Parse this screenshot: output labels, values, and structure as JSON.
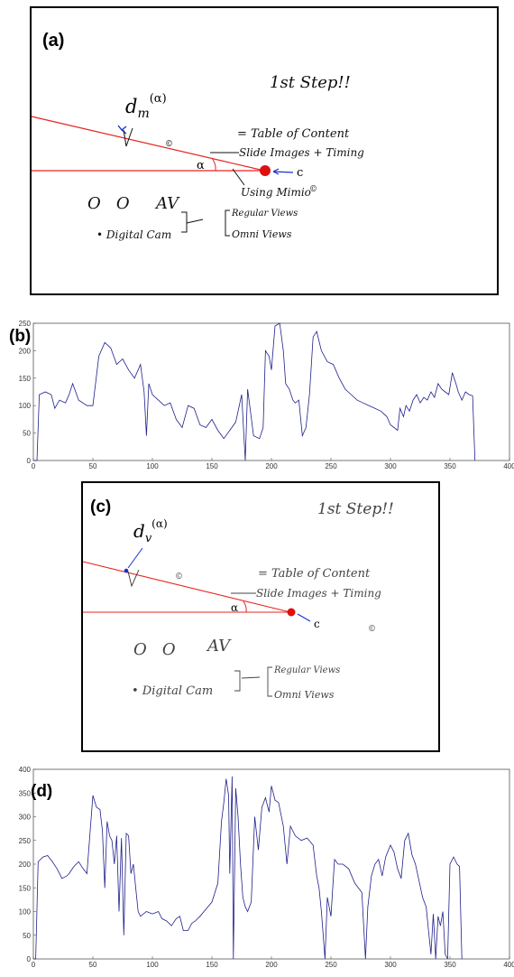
{
  "panels": {
    "a": {
      "label": "(a)",
      "symbol_base": "d",
      "symbol_sub": "m",
      "symbol_sup": "(α)",
      "angle_label": "α",
      "point_label": "c",
      "notes": {
        "step": "1st Step!!",
        "toc": "= Table of Content",
        "slides": "Slide Images + Timing",
        "mimio": "Using Mimio",
        "copyright": "©",
        "oo": "O   O",
        "av": "AV",
        "cam": "• Digital Cam",
        "regular": "Regular Views",
        "omni": "Omni Views"
      }
    },
    "b": {
      "label": "(b)"
    },
    "c": {
      "label": "(c)",
      "symbol_base": "d",
      "symbol_sub": "v",
      "symbol_sup": "(α)",
      "angle_label": "α",
      "point_label": "c",
      "notes": {
        "step": "1st Step!!",
        "toc": "= Table of Content",
        "slides": "Slide Images + Timing",
        "copyright": "©",
        "oo": "O   O",
        "av": "AV",
        "cam": "• Digital Cam",
        "regular": "Regular Views",
        "omni": "Omni Views"
      }
    },
    "d": {
      "label": "(d)"
    }
  },
  "colors": {
    "ray": "#e8241f",
    "point": "#e01010",
    "marker": "#1a2fd1",
    "series": "#1f1f8c"
  },
  "chart_data": [
    {
      "type": "line",
      "panel": "b",
      "xlim": [
        0,
        400
      ],
      "ylim": [
        0,
        250
      ],
      "xticks": [
        0,
        50,
        100,
        150,
        200,
        250,
        300,
        350,
        400
      ],
      "yticks": [
        0,
        50,
        100,
        150,
        200,
        250
      ],
      "points": [
        [
          0,
          0
        ],
        [
          3,
          0
        ],
        [
          5,
          120
        ],
        [
          10,
          125
        ],
        [
          15,
          120
        ],
        [
          18,
          95
        ],
        [
          22,
          110
        ],
        [
          27,
          105
        ],
        [
          30,
          120
        ],
        [
          33,
          140
        ],
        [
          38,
          110
        ],
        [
          45,
          100
        ],
        [
          50,
          100
        ],
        [
          55,
          190
        ],
        [
          60,
          215
        ],
        [
          65,
          205
        ],
        [
          70,
          175
        ],
        [
          75,
          185
        ],
        [
          80,
          165
        ],
        [
          85,
          150
        ],
        [
          90,
          175
        ],
        [
          93,
          125
        ],
        [
          95,
          45
        ],
        [
          97,
          140
        ],
        [
          100,
          120
        ],
        [
          105,
          110
        ],
        [
          110,
          100
        ],
        [
          115,
          105
        ],
        [
          120,
          75
        ],
        [
          125,
          60
        ],
        [
          130,
          100
        ],
        [
          135,
          95
        ],
        [
          140,
          65
        ],
        [
          145,
          60
        ],
        [
          150,
          75
        ],
        [
          155,
          55
        ],
        [
          160,
          40
        ],
        [
          165,
          55
        ],
        [
          170,
          70
        ],
        [
          175,
          120
        ],
        [
          178,
          0
        ],
        [
          180,
          130
        ],
        [
          185,
          45
        ],
        [
          190,
          40
        ],
        [
          193,
          60
        ],
        [
          195,
          200
        ],
        [
          198,
          190
        ],
        [
          200,
          165
        ],
        [
          203,
          245
        ],
        [
          207,
          250
        ],
        [
          210,
          200
        ],
        [
          212,
          140
        ],
        [
          215,
          130
        ],
        [
          218,
          110
        ],
        [
          220,
          105
        ],
        [
          223,
          110
        ],
        [
          226,
          45
        ],
        [
          229,
          60
        ],
        [
          232,
          120
        ],
        [
          235,
          225
        ],
        [
          238,
          235
        ],
        [
          242,
          200
        ],
        [
          247,
          180
        ],
        [
          252,
          175
        ],
        [
          257,
          150
        ],
        [
          262,
          130
        ],
        [
          267,
          120
        ],
        [
          272,
          110
        ],
        [
          277,
          105
        ],
        [
          282,
          100
        ],
        [
          287,
          95
        ],
        [
          292,
          90
        ],
        [
          297,
          80
        ],
        [
          300,
          65
        ],
        [
          303,
          60
        ],
        [
          306,
          55
        ],
        [
          308,
          95
        ],
        [
          311,
          80
        ],
        [
          313,
          100
        ],
        [
          316,
          90
        ],
        [
          319,
          110
        ],
        [
          322,
          120
        ],
        [
          325,
          105
        ],
        [
          328,
          115
        ],
        [
          331,
          110
        ],
        [
          334,
          125
        ],
        [
          337,
          115
        ],
        [
          340,
          140
        ],
        [
          343,
          130
        ],
        [
          346,
          125
        ],
        [
          349,
          120
        ],
        [
          352,
          160
        ],
        [
          355,
          140
        ],
        [
          357,
          125
        ],
        [
          360,
          110
        ],
        [
          363,
          125
        ],
        [
          366,
          120
        ],
        [
          369,
          118
        ],
        [
          371,
          0
        ]
      ]
    },
    {
      "type": "line",
      "panel": "d",
      "xlim": [
        0,
        400
      ],
      "ylim": [
        0,
        400
      ],
      "xticks": [
        0,
        50,
        100,
        150,
        200,
        250,
        300,
        350,
        400
      ],
      "yticks": [
        0,
        50,
        100,
        150,
        200,
        250,
        300,
        350,
        400
      ],
      "points": [
        [
          0,
          0
        ],
        [
          2,
          0
        ],
        [
          4,
          205
        ],
        [
          8,
          215
        ],
        [
          12,
          218
        ],
        [
          16,
          205
        ],
        [
          20,
          190
        ],
        [
          24,
          170
        ],
        [
          28,
          175
        ],
        [
          30,
          180
        ],
        [
          34,
          195
        ],
        [
          38,
          205
        ],
        [
          42,
          190
        ],
        [
          45,
          180
        ],
        [
          50,
          345
        ],
        [
          53,
          320
        ],
        [
          56,
          315
        ],
        [
          58,
          270
        ],
        [
          60,
          150
        ],
        [
          62,
          290
        ],
        [
          64,
          260
        ],
        [
          66,
          250
        ],
        [
          68,
          200
        ],
        [
          70,
          260
        ],
        [
          72,
          100
        ],
        [
          74,
          255
        ],
        [
          76,
          50
        ],
        [
          78,
          265
        ],
        [
          80,
          260
        ],
        [
          82,
          180
        ],
        [
          84,
          200
        ],
        [
          86,
          150
        ],
        [
          88,
          100
        ],
        [
          90,
          90
        ],
        [
          95,
          100
        ],
        [
          100,
          95
        ],
        [
          105,
          100
        ],
        [
          108,
          85
        ],
        [
          112,
          80
        ],
        [
          116,
          70
        ],
        [
          120,
          85
        ],
        [
          123,
          90
        ],
        [
          126,
          60
        ],
        [
          130,
          60
        ],
        [
          133,
          75
        ],
        [
          136,
          80
        ],
        [
          140,
          90
        ],
        [
          145,
          105
        ],
        [
          150,
          120
        ],
        [
          155,
          160
        ],
        [
          158,
          290
        ],
        [
          160,
          330
        ],
        [
          162,
          380
        ],
        [
          164,
          345
        ],
        [
          165,
          180
        ],
        [
          167,
          385
        ],
        [
          168,
          0
        ],
        [
          170,
          360
        ],
        [
          172,
          300
        ],
        [
          174,
          200
        ],
        [
          176,
          130
        ],
        [
          178,
          110
        ],
        [
          180,
          100
        ],
        [
          183,
          120
        ],
        [
          186,
          300
        ],
        [
          189,
          230
        ],
        [
          192,
          320
        ],
        [
          195,
          340
        ],
        [
          198,
          310
        ],
        [
          200,
          365
        ],
        [
          203,
          335
        ],
        [
          206,
          330
        ],
        [
          210,
          280
        ],
        [
          213,
          200
        ],
        [
          216,
          280
        ],
        [
          220,
          260
        ],
        [
          225,
          250
        ],
        [
          230,
          255
        ],
        [
          235,
          240
        ],
        [
          238,
          175
        ],
        [
          240,
          150
        ],
        [
          242,
          100
        ],
        [
          245,
          0
        ],
        [
          247,
          130
        ],
        [
          250,
          90
        ],
        [
          253,
          210
        ],
        [
          256,
          200
        ],
        [
          260,
          200
        ],
        [
          265,
          190
        ],
        [
          270,
          160
        ],
        [
          273,
          150
        ],
        [
          276,
          140
        ],
        [
          279,
          0
        ],
        [
          281,
          110
        ],
        [
          284,
          175
        ],
        [
          287,
          200
        ],
        [
          290,
          210
        ],
        [
          293,
          175
        ],
        [
          296,
          215
        ],
        [
          300,
          240
        ],
        [
          303,
          225
        ],
        [
          306,
          190
        ],
        [
          309,
          170
        ],
        [
          312,
          250
        ],
        [
          315,
          265
        ],
        [
          318,
          220
        ],
        [
          321,
          200
        ],
        [
          324,
          165
        ],
        [
          327,
          130
        ],
        [
          330,
          110
        ],
        [
          332,
          60
        ],
        [
          334,
          10
        ],
        [
          336,
          95
        ],
        [
          338,
          0
        ],
        [
          340,
          90
        ],
        [
          342,
          70
        ],
        [
          344,
          100
        ],
        [
          346,
          10
        ],
        [
          348,
          0
        ],
        [
          350,
          200
        ],
        [
          353,
          215
        ],
        [
          356,
          200
        ],
        [
          358,
          195
        ],
        [
          360,
          0
        ]
      ]
    }
  ]
}
